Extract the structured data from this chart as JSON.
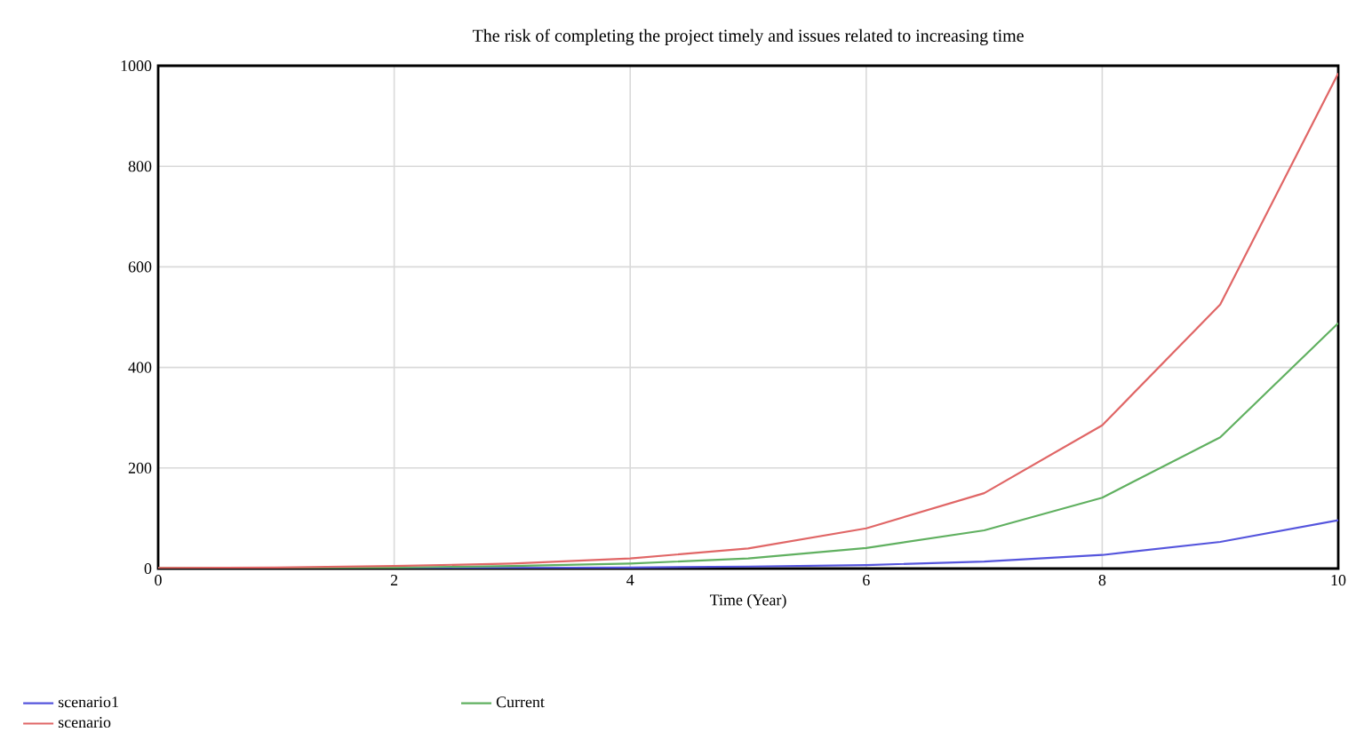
{
  "chart_data": {
    "type": "line",
    "title": "The risk of completing the project timely and issues related to increasing time",
    "xlabel": "Time (Year)",
    "x": [
      0,
      1,
      2,
      3,
      4,
      5,
      6,
      7,
      8,
      9,
      10
    ],
    "series": [
      {
        "name": "scenario1",
        "color": "#5555dd",
        "values": [
          0,
          0,
          1,
          1,
          2,
          4,
          7,
          14,
          27,
          53,
          96
        ]
      },
      {
        "name": "Current",
        "color": "#60b060",
        "values": [
          1,
          1,
          2,
          5,
          10,
          20,
          41,
          76,
          141,
          261,
          488
        ]
      },
      {
        "name": "scenario",
        "color": "#e06666",
        "values": [
          1,
          2,
          5,
          10,
          20,
          40,
          80,
          150,
          285,
          525,
          985
        ]
      }
    ],
    "xlim": [
      0,
      10
    ],
    "ylim": [
      0,
      1000
    ],
    "xticks": [
      0,
      2,
      4,
      6,
      8,
      10
    ],
    "yticks": [
      0,
      200,
      400,
      600,
      800,
      1000
    ],
    "grid": true,
    "legend": "bottom",
    "marker": "none",
    "line_style": "solid"
  }
}
